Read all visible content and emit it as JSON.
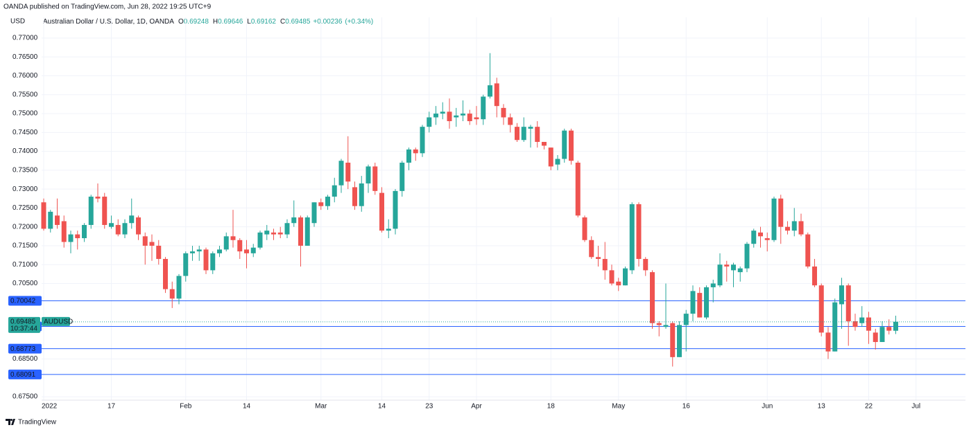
{
  "header": {
    "published": "OANDA published on TradingView.com, Jun 28, 2022 19:25 UTC+9",
    "brand": "TradingView"
  },
  "chart_data": {
    "type": "candlestick",
    "title": "Australian Dollar / U.S. Dollar, 1D, OANDA",
    "ohlc_legend": [
      {
        "label": "O",
        "value": 0.69248
      },
      {
        "label": "H",
        "value": 0.69646
      },
      {
        "label": "L",
        "value": 0.69162
      },
      {
        "label": "C",
        "value": 0.69485
      }
    ],
    "change": "+0.00236",
    "change_pct": "(+0.34%)",
    "y_label": "USD",
    "up_color": "#26a69a",
    "down_color": "#ef5350",
    "level_color": "#2962ff",
    "grid": true,
    "ylim": [
      0.6741,
      0.7755
    ],
    "yticks": [
      {
        "value": 0.77,
        "label": "0.77000"
      },
      {
        "value": 0.765,
        "label": "0.76500"
      },
      {
        "value": 0.76,
        "label": "0.76000"
      },
      {
        "value": 0.755,
        "label": "0.75500"
      },
      {
        "value": 0.75,
        "label": "0.75000"
      },
      {
        "value": 0.745,
        "label": "0.74500"
      },
      {
        "value": 0.74,
        "label": "0.74000"
      },
      {
        "value": 0.735,
        "label": "0.73500"
      },
      {
        "value": 0.73,
        "label": "0.73000"
      },
      {
        "value": 0.725,
        "label": "0.72500"
      },
      {
        "value": 0.72,
        "label": "0.72000"
      },
      {
        "value": 0.715,
        "label": "0.71500"
      },
      {
        "value": 0.71,
        "label": "0.71000"
      },
      {
        "value": 0.705,
        "label": "0.70500"
      },
      {
        "value": 0.685,
        "label": "0.68500"
      },
      {
        "value": 0.675,
        "label": "0.67500"
      }
    ],
    "levels": [
      0.70042,
      0.69362,
      0.68773,
      0.68091
    ],
    "last_price": 0.69485,
    "countdown": "10:37:44",
    "symbol": "AUDUSD",
    "categories": [
      "2022",
      null,
      null,
      null,
      null,
      null,
      null,
      null,
      null,
      null,
      "17",
      null,
      null,
      null,
      null,
      null,
      null,
      null,
      null,
      null,
      null,
      "Feb",
      null,
      null,
      null,
      null,
      null,
      null,
      null,
      null,
      "14",
      null,
      null,
      null,
      null,
      null,
      null,
      null,
      null,
      null,
      null,
      "Mar",
      null,
      null,
      null,
      null,
      null,
      null,
      null,
      null,
      "14",
      null,
      null,
      null,
      null,
      null,
      null,
      "23",
      null,
      null,
      null,
      null,
      null,
      null,
      "Apr",
      null,
      null,
      null,
      null,
      null,
      null,
      null,
      null,
      null,
      null,
      "18",
      null,
      null,
      null,
      null,
      null,
      null,
      null,
      null,
      null,
      "May",
      null,
      null,
      null,
      null,
      null,
      null,
      null,
      null,
      null,
      "16",
      null,
      null,
      null,
      null,
      null,
      null,
      null,
      null,
      null,
      null,
      null,
      "Jun",
      null,
      null,
      null,
      null,
      null,
      null,
      null,
      "13",
      null,
      null,
      null,
      null,
      null,
      null,
      "22",
      null,
      null,
      null,
      null,
      null,
      null,
      "Jul"
    ],
    "open": [
      0.7265,
      0.7195,
      0.723,
      0.7215,
      0.716,
      0.718,
      0.717,
      0.7205,
      0.728,
      0.728,
      0.72,
      0.7205,
      0.718,
      0.721,
      0.7225,
      0.7175,
      0.716,
      0.715,
      0.7115,
      0.7035,
      0.701,
      0.707,
      0.713,
      0.7135,
      0.714,
      0.7085,
      0.713,
      0.714,
      0.7175,
      0.7165,
      0.714,
      0.713,
      0.7145,
      0.718,
      0.7185,
      0.7185,
      0.718,
      0.721,
      0.7225,
      0.715,
      0.721,
      0.7265,
      0.7255,
      0.728,
      0.731,
      0.737,
      0.7305,
      0.7255,
      0.7315,
      0.736,
      0.729,
      0.719,
      0.7195,
      0.7295,
      0.737,
      0.7405,
      0.7395,
      0.7465,
      0.749,
      0.75,
      0.7505,
      0.749,
      0.7495,
      0.75,
      0.749,
      0.7485,
      0.7545,
      0.758,
      0.7515,
      0.749,
      0.7465,
      0.743,
      0.746,
      0.7465,
      0.7425,
      0.741,
      0.7365,
      0.738,
      0.7455,
      0.737,
      0.7225,
      0.7165,
      0.712,
      0.7115,
      0.7085,
      0.7055,
      0.7045,
      0.7085,
      0.726,
      0.7115,
      0.708,
      0.6945,
      0.6935,
      0.6945,
      0.6855,
      0.694,
      0.697,
      0.7025,
      0.696,
      0.704,
      0.7045,
      0.71,
      0.7085,
      0.708,
      0.709,
      0.7155,
      0.7185,
      0.717,
      0.7165,
      0.7275,
      0.72,
      0.719,
      0.7215,
      0.718,
      0.7095,
      0.7045,
      0.692,
      0.687,
      0.6995,
      0.7045,
      0.695,
      0.6945,
      0.696,
      0.692,
      0.6895,
      0.6935,
      0.69248,
      null,
      null,
      null
    ],
    "high": [
      0.7275,
      0.7245,
      0.7275,
      0.723,
      0.719,
      0.719,
      0.721,
      0.7285,
      0.7315,
      0.729,
      0.723,
      0.722,
      0.722,
      0.7275,
      0.723,
      0.7185,
      0.718,
      0.7165,
      0.712,
      0.7055,
      0.7075,
      0.7135,
      0.715,
      0.715,
      0.7145,
      0.7135,
      0.715,
      0.7185,
      0.7245,
      0.717,
      0.7165,
      0.7155,
      0.719,
      0.7205,
      0.7195,
      0.72,
      0.722,
      0.727,
      0.723,
      0.723,
      0.7265,
      0.7275,
      0.7285,
      0.733,
      0.738,
      0.744,
      0.732,
      0.7335,
      0.7365,
      0.737,
      0.7305,
      0.722,
      0.73,
      0.7375,
      0.741,
      0.741,
      0.747,
      0.7505,
      0.752,
      0.753,
      0.754,
      0.7515,
      0.7535,
      0.751,
      0.752,
      0.755,
      0.766,
      0.7595,
      0.7525,
      0.75,
      0.7475,
      0.749,
      0.747,
      0.748,
      0.7425,
      0.741,
      0.739,
      0.746,
      0.746,
      0.7375,
      0.723,
      0.7175,
      0.715,
      0.716,
      0.71,
      0.7065,
      0.7095,
      0.7265,
      0.7265,
      0.712,
      0.7085,
      0.695,
      0.705,
      0.695,
      0.695,
      0.698,
      0.7045,
      0.704,
      0.7045,
      0.706,
      0.713,
      0.711,
      0.7105,
      0.7095,
      0.716,
      0.7195,
      0.72,
      0.7185,
      0.728,
      0.7285,
      0.7215,
      0.725,
      0.7235,
      0.7185,
      0.7115,
      0.705,
      0.6935,
      0.701,
      0.7065,
      0.705,
      0.697,
      0.699,
      0.6975,
      0.693,
      0.695,
      0.6955,
      0.69646,
      null,
      null,
      null
    ],
    "low": [
      0.719,
      0.7185,
      0.7195,
      0.7145,
      0.713,
      0.714,
      0.716,
      0.7195,
      0.7265,
      0.7195,
      0.7195,
      0.7175,
      0.717,
      0.7195,
      0.7165,
      0.71,
      0.711,
      0.71,
      0.7025,
      0.6985,
      0.6995,
      0.7055,
      0.711,
      0.711,
      0.7075,
      0.7075,
      0.712,
      0.7135,
      0.7145,
      0.7115,
      0.709,
      0.712,
      0.714,
      0.7165,
      0.7165,
      0.717,
      0.717,
      0.72,
      0.7095,
      0.715,
      0.72,
      0.7245,
      0.7245,
      0.7265,
      0.729,
      0.73,
      0.7245,
      0.724,
      0.729,
      0.7285,
      0.7185,
      0.717,
      0.718,
      0.728,
      0.735,
      0.7375,
      0.7385,
      0.745,
      0.747,
      0.7485,
      0.746,
      0.7465,
      0.748,
      0.747,
      0.747,
      0.747,
      0.754,
      0.749,
      0.747,
      0.745,
      0.7425,
      0.7425,
      0.741,
      0.741,
      0.7405,
      0.735,
      0.735,
      0.737,
      0.7365,
      0.7225,
      0.716,
      0.7115,
      0.7095,
      0.706,
      0.7045,
      0.703,
      0.7045,
      0.7075,
      0.7095,
      0.707,
      0.693,
      0.691,
      0.693,
      0.683,
      0.6855,
      0.687,
      0.695,
      0.696,
      0.6955,
      0.7,
      0.704,
      0.7055,
      0.704,
      0.7055,
      0.708,
      0.7145,
      0.7145,
      0.7135,
      0.716,
      0.7155,
      0.718,
      0.7175,
      0.7175,
      0.709,
      0.704,
      0.691,
      0.685,
      0.687,
      0.693,
      0.6885,
      0.6925,
      0.6935,
      0.689,
      0.6875,
      0.6895,
      0.6915,
      0.69162,
      null,
      null,
      null
    ],
    "close": [
      0.7195,
      0.724,
      0.7205,
      0.716,
      0.718,
      0.717,
      0.7205,
      0.728,
      0.7275,
      0.7205,
      0.721,
      0.718,
      0.721,
      0.723,
      0.718,
      0.715,
      0.715,
      0.7115,
      0.7035,
      0.701,
      0.707,
      0.713,
      0.7135,
      0.714,
      0.7085,
      0.713,
      0.714,
      0.7175,
      0.7165,
      0.7135,
      0.713,
      0.7145,
      0.7185,
      0.719,
      0.718,
      0.718,
      0.721,
      0.7225,
      0.715,
      0.7225,
      0.7265,
      0.7255,
      0.728,
      0.731,
      0.7375,
      0.732,
      0.7255,
      0.7315,
      0.736,
      0.7295,
      0.719,
      0.7195,
      0.7295,
      0.737,
      0.7405,
      0.7395,
      0.7465,
      0.749,
      0.75,
      0.7505,
      0.748,
      0.7495,
      0.75,
      0.748,
      0.7485,
      0.7545,
      0.7575,
      0.752,
      0.749,
      0.747,
      0.743,
      0.7465,
      0.7465,
      0.7425,
      0.7415,
      0.736,
      0.738,
      0.7455,
      0.7375,
      0.723,
      0.7165,
      0.712,
      0.7115,
      0.7085,
      0.705,
      0.7045,
      0.709,
      0.726,
      0.7115,
      0.7085,
      0.6945,
      0.694,
      0.694,
      0.6855,
      0.694,
      0.697,
      0.703,
      0.696,
      0.704,
      0.705,
      0.71,
      0.7095,
      0.71,
      0.709,
      0.7155,
      0.719,
      0.7175,
      0.7165,
      0.7275,
      0.72,
      0.719,
      0.7215,
      0.718,
      0.7095,
      0.7045,
      0.692,
      0.687,
      0.7,
      0.7045,
      0.695,
      0.6935,
      0.696,
      0.6925,
      0.6895,
      0.6935,
      0.6925,
      0.69485,
      null,
      null,
      null
    ]
  }
}
